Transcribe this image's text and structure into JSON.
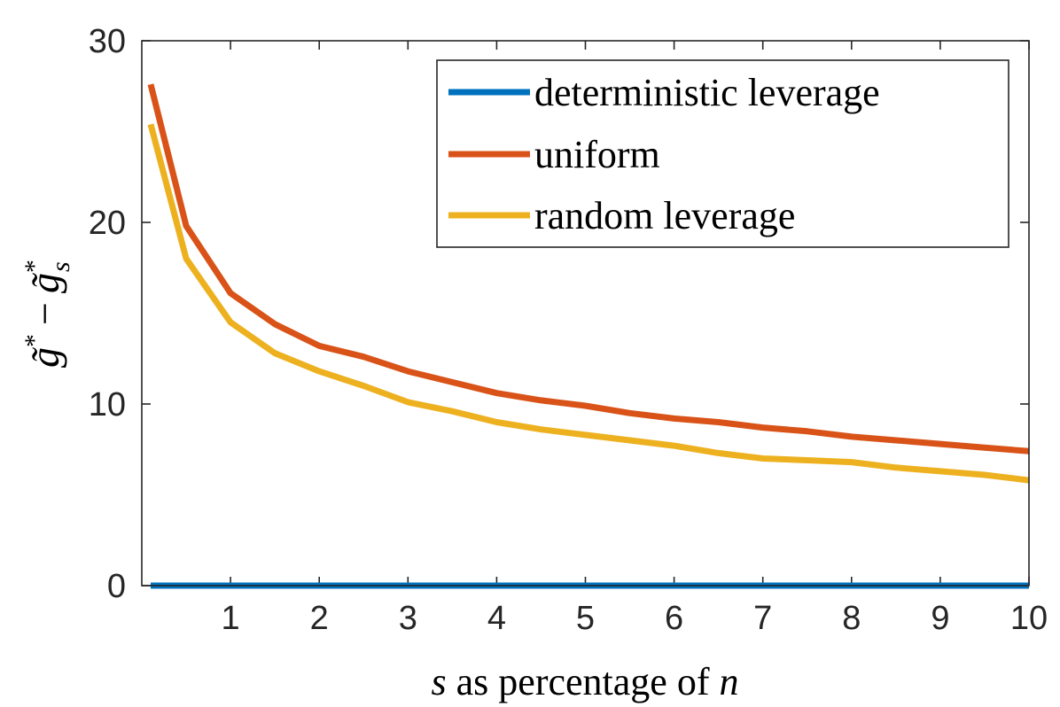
{
  "chart_data": {
    "type": "line",
    "xlabel_var": "s",
    "xlabel_rest": " as percentage of ",
    "xlabel_var2": "n",
    "ylabel": "g̃* − g̃*ₛ",
    "ylabel_base": "g̃",
    "ylabel_minus": "−",
    "ylabel_sup": "*",
    "ylabel_sub": "s",
    "xlim": [
      0,
      10
    ],
    "ylim": [
      0,
      30
    ],
    "xticks": [
      1,
      2,
      3,
      4,
      5,
      6,
      7,
      8,
      9,
      10
    ],
    "yticks": [
      0,
      10,
      20,
      30
    ],
    "legend_position": "top-right",
    "x": [
      0.1,
      0.5,
      1,
      1.5,
      2,
      2.5,
      3,
      3.5,
      4,
      4.5,
      5,
      5.5,
      6,
      6.5,
      7,
      7.5,
      8,
      8.5,
      9,
      9.5,
      10
    ],
    "series": [
      {
        "name": "deterministic leverage",
        "color": "#0072BD",
        "values": [
          0,
          0,
          0,
          0,
          0,
          0,
          0,
          0,
          0,
          0,
          0,
          0,
          0,
          0,
          0,
          0,
          0,
          0,
          0,
          0,
          0
        ]
      },
      {
        "name": "uniform",
        "color": "#D95319",
        "values": [
          27.6,
          19.8,
          16.1,
          14.4,
          13.2,
          12.6,
          11.8,
          11.2,
          10.6,
          10.2,
          9.9,
          9.5,
          9.2,
          9.0,
          8.7,
          8.5,
          8.2,
          8.0,
          7.8,
          7.6,
          7.4
        ]
      },
      {
        "name": "random leverage",
        "color": "#EDB120",
        "values": [
          25.4,
          18.0,
          14.5,
          12.8,
          11.8,
          11.0,
          10.1,
          9.6,
          9.0,
          8.6,
          8.3,
          8.0,
          7.7,
          7.3,
          7.0,
          6.9,
          6.8,
          6.5,
          6.3,
          6.1,
          5.8
        ]
      }
    ]
  }
}
